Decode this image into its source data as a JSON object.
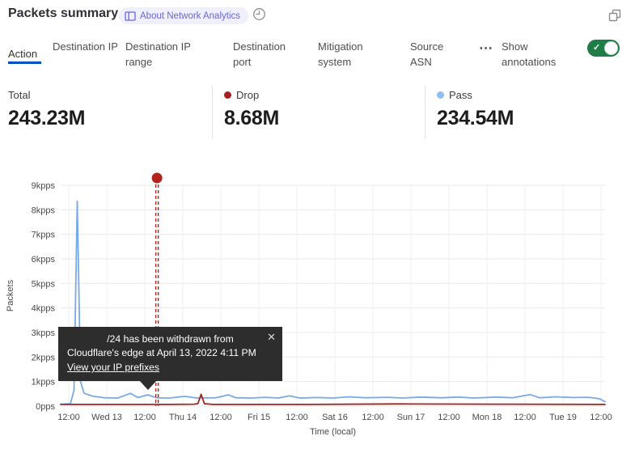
{
  "header": {
    "title": "Packets summary",
    "badge_label": "About Network Analytics",
    "icons": {
      "badge": "book-icon",
      "time": "clock-icon",
      "window": "expand-icon"
    }
  },
  "tabs": {
    "items": [
      {
        "label": "Action",
        "active": true
      },
      {
        "label": "Destination IP",
        "active": false
      },
      {
        "label": "Destination IP range",
        "active": false
      },
      {
        "label": "Destination port",
        "active": false
      },
      {
        "label": "Mitigation system",
        "active": false
      },
      {
        "label": "Source ASN",
        "active": false
      }
    ],
    "more_label": "⋯",
    "annotations_label": "Show annotations",
    "toggle": {
      "state": "on",
      "check_glyph": "✓",
      "color": "#1e7e46"
    }
  },
  "stats": {
    "items": [
      {
        "label": "Total",
        "value": "243.23M",
        "dot_color": null
      },
      {
        "label": "Drop",
        "value": "8.68M",
        "dot_color": "#a5211e"
      },
      {
        "label": "Pass",
        "value": "234.54M",
        "dot_color": "#92bdf2"
      }
    ]
  },
  "tooltip": {
    "line1": "/24 has been withdrawn from",
    "line2": "Cloudflare's edge at April 13, 2022 4:11 PM",
    "link": "View your IP prefixes",
    "close_glyph": "✕"
  },
  "chart_data": {
    "type": "line",
    "title": "Packets summary",
    "xlabel": "Time (local)",
    "ylabel": "Packets",
    "ylim": [
      0,
      9
    ],
    "y_unit": "kpps",
    "grid": true,
    "legend_position": "top-stat-cards",
    "y_ticks": [
      "0pps",
      "1kpps",
      "2kpps",
      "3kpps",
      "4kpps",
      "5kpps",
      "6kpps",
      "7kpps",
      "8kpps",
      "9kpps"
    ],
    "x_ticks": [
      "12:00",
      "Wed 13",
      "12:00",
      "Thu 14",
      "12:00",
      "Fri 15",
      "12:00",
      "Sat 16",
      "12:00",
      "Sun 17",
      "12:00",
      "Mon 18",
      "12:00",
      "Tue 19",
      "12:00"
    ],
    "x_units": "fraction of time axis (≈ Apr 12 12:00 → Apr 19 12:00)",
    "series": [
      {
        "name": "Pass",
        "color": "#7aa9e8",
        "total": "234.54M",
        "points": [
          [
            0,
            0.08
          ],
          [
            0.018,
            0.1
          ],
          [
            0.0245,
            0.65
          ],
          [
            0.0305,
            8.35
          ],
          [
            0.0365,
            1.0
          ],
          [
            0.043,
            0.52
          ],
          [
            0.06,
            0.4
          ],
          [
            0.08,
            0.34
          ],
          [
            0.105,
            0.33
          ],
          [
            0.128,
            0.52
          ],
          [
            0.142,
            0.35
          ],
          [
            0.16,
            0.46
          ],
          [
            0.176,
            0.34
          ],
          [
            0.2,
            0.33
          ],
          [
            0.228,
            0.4
          ],
          [
            0.25,
            0.33
          ],
          [
            0.285,
            0.34
          ],
          [
            0.308,
            0.46
          ],
          [
            0.322,
            0.34
          ],
          [
            0.35,
            0.33
          ],
          [
            0.375,
            0.36
          ],
          [
            0.4,
            0.33
          ],
          [
            0.42,
            0.42
          ],
          [
            0.44,
            0.33
          ],
          [
            0.47,
            0.35
          ],
          [
            0.5,
            0.33
          ],
          [
            0.53,
            0.38
          ],
          [
            0.56,
            0.34
          ],
          [
            0.6,
            0.36
          ],
          [
            0.63,
            0.33
          ],
          [
            0.66,
            0.37
          ],
          [
            0.7,
            0.34
          ],
          [
            0.73,
            0.37
          ],
          [
            0.76,
            0.33
          ],
          [
            0.8,
            0.37
          ],
          [
            0.83,
            0.34
          ],
          [
            0.862,
            0.47
          ],
          [
            0.88,
            0.34
          ],
          [
            0.91,
            0.38
          ],
          [
            0.94,
            0.35
          ],
          [
            0.97,
            0.36
          ],
          [
            0.99,
            0.3
          ],
          [
            1.0,
            0.18
          ]
        ]
      },
      {
        "name": "Drop",
        "color": "#a5211e",
        "total": "8.68M",
        "points": [
          [
            0,
            0.07
          ],
          [
            0.2,
            0.07
          ],
          [
            0.245,
            0.08
          ],
          [
            0.252,
            0.1
          ],
          [
            0.258,
            0.48
          ],
          [
            0.264,
            0.1
          ],
          [
            0.28,
            0.07
          ],
          [
            0.45,
            0.07
          ],
          [
            0.62,
            0.09
          ],
          [
            0.8,
            0.08
          ],
          [
            1.0,
            0.07
          ]
        ]
      }
    ],
    "annotation": {
      "x": 0.177,
      "time": "April 13, 2022 4:11 PM",
      "color": "#b1241c",
      "style": "double-dashed vertical line with dot marker above plot",
      "text": "/24 has been withdrawn from Cloudflare's edge at April 13, 2022 4:11 PM",
      "link": "View your IP prefixes"
    }
  }
}
